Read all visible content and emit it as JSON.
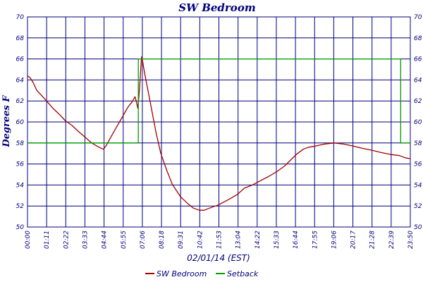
{
  "chart_data": {
    "type": "line",
    "title": "SW Bedroom",
    "xlabel": "02/01/14 (EST)",
    "ylabel": "Degrees F",
    "ylim": [
      50,
      70
    ],
    "y_ticks": [
      50,
      52,
      54,
      56,
      58,
      60,
      62,
      64,
      66,
      68,
      70
    ],
    "x_range_hours": [
      0,
      23.833
    ],
    "x_ticks": [
      "00:00",
      "01:11",
      "02:22",
      "03:33",
      "04:44",
      "05:55",
      "07:06",
      "08:18",
      "09:31",
      "10:42",
      "11:53",
      "13:04",
      "14:22",
      "15:33",
      "16:44",
      "17:55",
      "19:06",
      "20:17",
      "21:28",
      "22:39",
      "23:50"
    ],
    "grid": true,
    "legend_position": "bottom",
    "series": [
      {
        "name": "SW Bedroom",
        "color": "#a00000",
        "points": [
          [
            "00:00",
            64.4
          ],
          [
            "00:10",
            64.2
          ],
          [
            "00:20",
            63.8
          ],
          [
            "00:35",
            63.0
          ],
          [
            "00:50",
            62.6
          ],
          [
            "01:11",
            62.0
          ],
          [
            "01:35",
            61.3
          ],
          [
            "02:00",
            60.7
          ],
          [
            "02:22",
            60.1
          ],
          [
            "02:45",
            59.7
          ],
          [
            "03:10",
            59.1
          ],
          [
            "03:33",
            58.6
          ],
          [
            "04:00",
            58.0
          ],
          [
            "04:20",
            57.7
          ],
          [
            "04:35",
            57.5
          ],
          [
            "04:44",
            57.4
          ],
          [
            "04:55",
            57.8
          ],
          [
            "05:10",
            58.5
          ],
          [
            "05:30",
            59.4
          ],
          [
            "05:55",
            60.5
          ],
          [
            "06:15",
            61.4
          ],
          [
            "06:30",
            61.9
          ],
          [
            "06:42",
            62.4
          ],
          [
            "06:48",
            61.8
          ],
          [
            "06:52",
            61.3
          ],
          [
            "06:56",
            62.4
          ],
          [
            "07:00",
            63.8
          ],
          [
            "07:04",
            65.4
          ],
          [
            "07:06",
            66.2
          ],
          [
            "07:09",
            66.0
          ],
          [
            "07:13",
            65.3
          ],
          [
            "07:20",
            64.3
          ],
          [
            "07:30",
            63.0
          ],
          [
            "07:45",
            61.0
          ],
          [
            "08:00",
            59.0
          ],
          [
            "08:18",
            57.0
          ],
          [
            "08:40",
            55.4
          ],
          [
            "09:00",
            54.1
          ],
          [
            "09:31",
            52.9
          ],
          [
            "10:00",
            52.2
          ],
          [
            "10:20",
            51.8
          ],
          [
            "10:42",
            51.6
          ],
          [
            "11:00",
            51.6
          ],
          [
            "11:20",
            51.8
          ],
          [
            "11:53",
            52.1
          ],
          [
            "12:30",
            52.6
          ],
          [
            "13:04",
            53.1
          ],
          [
            "13:30",
            53.7
          ],
          [
            "14:00",
            54.0
          ],
          [
            "14:22",
            54.3
          ],
          [
            "15:00",
            54.8
          ],
          [
            "15:33",
            55.3
          ],
          [
            "16:00",
            55.8
          ],
          [
            "16:20",
            56.3
          ],
          [
            "16:44",
            56.9
          ],
          [
            "17:10",
            57.4
          ],
          [
            "17:30",
            57.6
          ],
          [
            "17:55",
            57.7
          ],
          [
            "18:30",
            57.9
          ],
          [
            "19:06",
            58.0
          ],
          [
            "19:40",
            57.9
          ],
          [
            "20:17",
            57.7
          ],
          [
            "20:50",
            57.5
          ],
          [
            "21:28",
            57.3
          ],
          [
            "22:00",
            57.1
          ],
          [
            "22:39",
            56.9
          ],
          [
            "23:10",
            56.8
          ],
          [
            "23:30",
            56.6
          ],
          [
            "23:50",
            56.5
          ]
        ]
      },
      {
        "name": "Setback",
        "color": "#00a000",
        "points": [
          [
            "00:00",
            58
          ],
          [
            "06:54",
            58
          ],
          [
            "06:54",
            66
          ],
          [
            "23:14",
            66
          ],
          [
            "23:14",
            58
          ],
          [
            "23:50",
            58
          ]
        ]
      }
    ]
  }
}
